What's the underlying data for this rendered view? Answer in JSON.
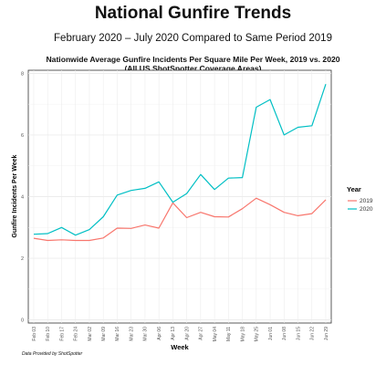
{
  "header": {
    "title": "National Gunfire Trends",
    "subtitle": "February 2020 – July 2020 Compared to Same Period 2019"
  },
  "footer": {
    "credit": "Data Provided by ShotSpotter"
  },
  "chart_data": {
    "type": "line",
    "title": "Nationwide Average Gunfire Incidents Per Square Mile Per Week, 2019 vs. 2020",
    "subtitle": "(All US ShotSpotter Coverage Areas)",
    "xlabel": "Week",
    "ylabel": "Gunfire Incidents Per Week",
    "categories": [
      "Feb 03",
      "Feb 10",
      "Feb 17",
      "Feb 24",
      "Mar 02",
      "Mar 09",
      "Mar 16",
      "Mar 23",
      "Mar 30",
      "Apr 06",
      "Apr 13",
      "Apr 20",
      "Apr 27",
      "May 04",
      "May 11",
      "May 18",
      "May 25",
      "Jun 01",
      "Jun 08",
      "Jun 15",
      "Jun 22",
      "Jun 29"
    ],
    "yticks": [
      0,
      2,
      4,
      6,
      8
    ],
    "ylim": [
      -0.1,
      8.1
    ],
    "grid": true,
    "legend": {
      "title": "Year",
      "position": "right"
    },
    "series": [
      {
        "name": "2019",
        "color": "#F8766D",
        "values": [
          2.65,
          2.58,
          2.6,
          2.58,
          2.58,
          2.66,
          2.98,
          2.97,
          3.08,
          2.98,
          3.8,
          3.32,
          3.49,
          3.35,
          3.34,
          3.61,
          3.95,
          3.74,
          3.49,
          3.38,
          3.45,
          3.9
        ]
      },
      {
        "name": "2020",
        "color": "#00BFC4",
        "values": [
          2.78,
          2.8,
          3.0,
          2.75,
          2.93,
          3.35,
          4.05,
          4.2,
          4.27,
          4.48,
          3.82,
          4.1,
          4.72,
          4.23,
          4.6,
          4.62,
          6.9,
          7.15,
          6.0,
          6.25,
          6.3,
          7.65
        ]
      }
    ]
  }
}
